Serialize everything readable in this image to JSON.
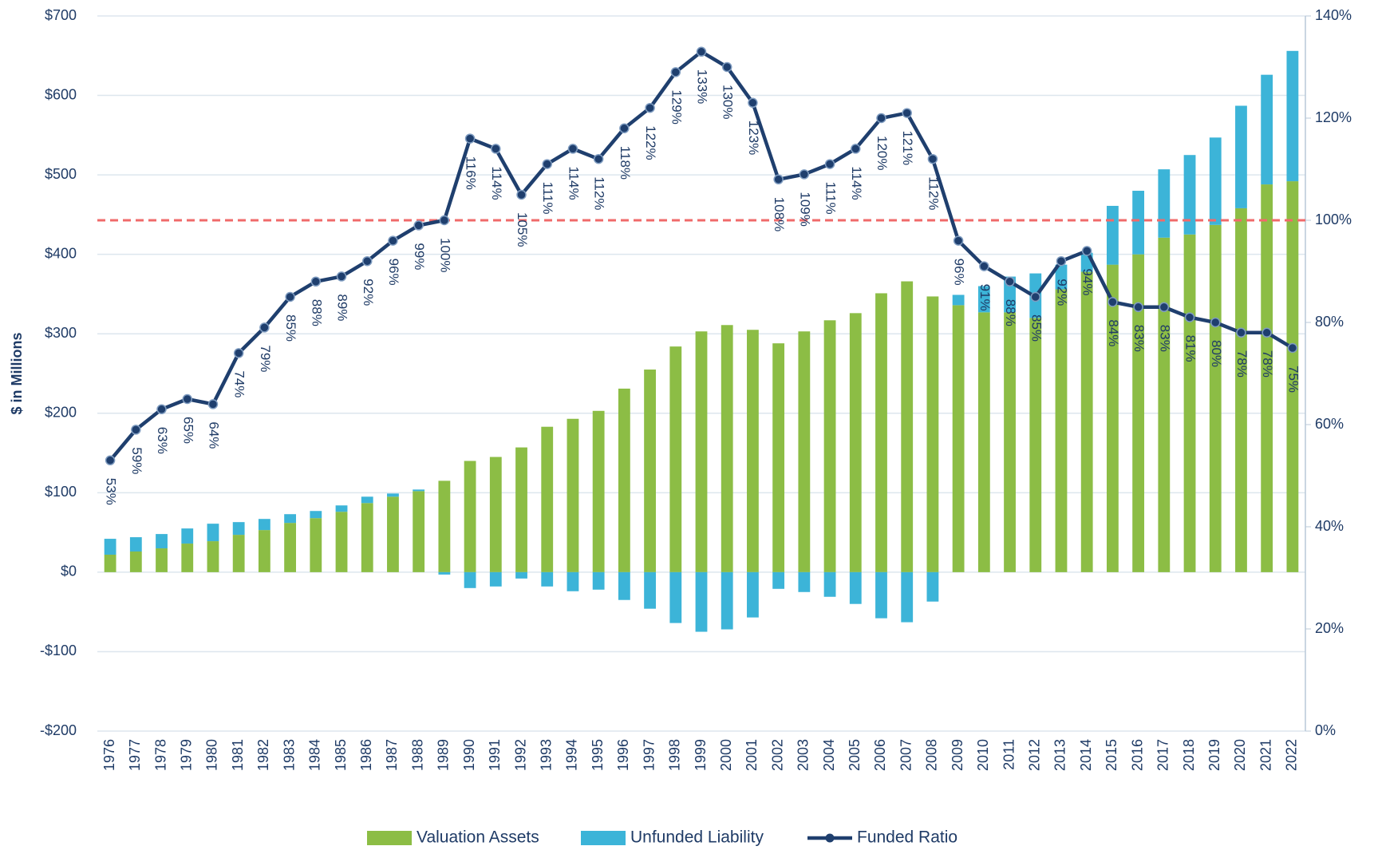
{
  "chart_data": {
    "type": "bar_line",
    "y_label": "$ in Millions",
    "categories": [
      "1976",
      "1977",
      "1978",
      "1979",
      "1980",
      "1981",
      "1982",
      "1983",
      "1984",
      "1985",
      "1986",
      "1987",
      "1988",
      "1989",
      "1990",
      "1991",
      "1992",
      "1993",
      "1994",
      "1995",
      "1996",
      "1997",
      "1998",
      "1999",
      "2000",
      "2001",
      "2002",
      "2003",
      "2004",
      "2005",
      "2006",
      "2007",
      "2008",
      "2009",
      "2010",
      "2011",
      "2012",
      "2013",
      "2014",
      "2015",
      "2016",
      "2017",
      "2018",
      "2019",
      "2020",
      "2021",
      "2022"
    ],
    "series": [
      {
        "name": "Valuation Assets",
        "type": "bar",
        "color": "#8cbd45",
        "values": [
          22,
          26,
          30,
          36,
          39,
          47,
          53,
          62,
          68,
          76,
          87,
          95,
          102,
          115,
          140,
          145,
          157,
          183,
          193,
          203,
          231,
          255,
          284,
          303,
          311,
          305,
          288,
          303,
          317,
          326,
          351,
          366,
          347,
          336,
          327,
          327,
          320,
          356,
          378,
          387,
          400,
          421,
          425,
          437,
          458,
          488,
          492
        ]
      },
      {
        "name": "Unfunded Liability",
        "type": "bar",
        "color": "#3cb4d8",
        "values": [
          20,
          18,
          18,
          19,
          22,
          16,
          14,
          11,
          9,
          8,
          8,
          4,
          2,
          -3,
          -20,
          -18,
          -8,
          -18,
          -24,
          -22,
          -35,
          -46,
          -64,
          -75,
          -72,
          -57,
          -21,
          -25,
          -31,
          -40,
          -58,
          -63,
          -37,
          13,
          33,
          45,
          56,
          31,
          24,
          74,
          80,
          86,
          100,
          110,
          129,
          138,
          164
        ]
      },
      {
        "name": "Funded Ratio",
        "type": "line",
        "axis": "y2",
        "color": "#1f3f6e",
        "values": [
          53,
          59,
          63,
          65,
          64,
          74,
          79,
          85,
          88,
          89,
          92,
          96,
          99,
          100,
          116,
          114,
          105,
          111,
          114,
          112,
          118,
          122,
          129,
          133,
          130,
          123,
          108,
          109,
          111,
          114,
          120,
          121,
          112,
          96,
          91,
          88,
          85,
          92,
          94,
          84,
          83,
          83,
          81,
          80,
          78,
          78,
          75
        ],
        "value_labels": [
          "53%",
          "59%",
          "63%",
          "65%",
          "64%",
          "74%",
          "79%",
          "85%",
          "88%",
          "89%",
          "92%",
          "96%",
          "99%",
          "100%",
          "116%",
          "114%",
          "105%",
          "111%",
          "114%",
          "112%",
          "118%",
          "122%",
          "129%",
          "133%",
          "130%",
          "123%",
          "108%",
          "109%",
          "111%",
          "114%",
          "120%",
          "121%",
          "112%",
          "96%",
          "91%",
          "88%",
          "85%",
          "92%",
          "94%",
          "84%",
          "83%",
          "83%",
          "81%",
          "80%",
          "78%",
          "78%",
          "75%"
        ]
      }
    ],
    "ylim": [
      -200,
      700
    ],
    "yticks": [
      {
        "value": -200,
        "label": "-$200"
      },
      {
        "value": -100,
        "label": "-$100"
      },
      {
        "value": 0,
        "label": "$0"
      },
      {
        "value": 100,
        "label": "$100"
      },
      {
        "value": 200,
        "label": "$200"
      },
      {
        "value": 300,
        "label": "$300"
      },
      {
        "value": 400,
        "label": "$400"
      },
      {
        "value": 500,
        "label": "$500"
      },
      {
        "value": 600,
        "label": "$600"
      },
      {
        "value": 700,
        "label": "$700"
      }
    ],
    "y2lim": [
      0,
      140
    ],
    "y2ticks": [
      {
        "value": 0,
        "label": "0%"
      },
      {
        "value": 20,
        "label": "20%"
      },
      {
        "value": 40,
        "label": "40%"
      },
      {
        "value": 60,
        "label": "60%"
      },
      {
        "value": 80,
        "label": "80%"
      },
      {
        "value": 100,
        "label": "100%"
      },
      {
        "value": 120,
        "label": "120%"
      },
      {
        "value": 140,
        "label": "140%"
      }
    ],
    "reference_line": {
      "value": 100,
      "axis": "y2",
      "color": "#f06a6a"
    },
    "grid": true,
    "legend": "bottom"
  }
}
